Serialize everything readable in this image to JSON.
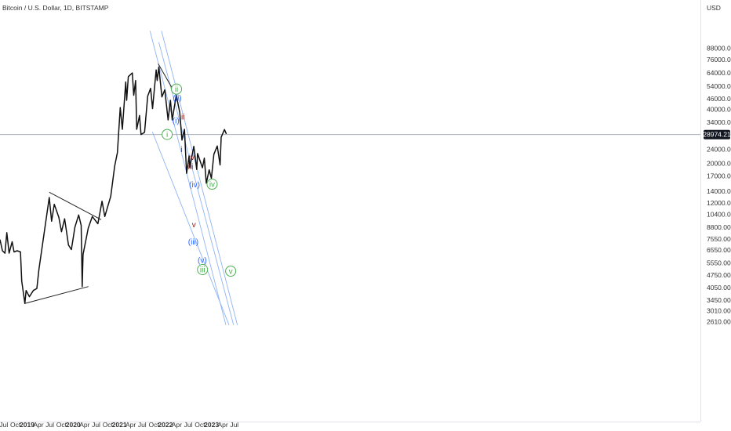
{
  "header": {
    "title": "Bitcoin / U.S. Dollar, 1D, BITSTAMP"
  },
  "chart_data": {
    "type": "line",
    "title": "Bitcoin / U.S. Dollar, 1D, BITSTAMP",
    "currency": "USD",
    "y_scale": "log",
    "ylim": [
      2400,
      110000
    ],
    "current_price": "28974.21",
    "x_ticks": [
      "Jul",
      "Oct",
      "2019",
      "Apr",
      "Jul",
      "Oct",
      "2020",
      "Apr",
      "Jul",
      "Oct",
      "2021",
      "Apr",
      "Jul",
      "Oct",
      "2022",
      "Apr",
      "Jul",
      "Oct",
      "2023",
      "Apr",
      "Jul"
    ],
    "y_ticks": [
      "88000.00",
      "76000.00",
      "64000.00",
      "54000.00",
      "46000.00",
      "40000.00",
      "34000.00",
      "24000.00",
      "20000.00",
      "17000.00",
      "14000.00",
      "12000.00",
      "10400.00",
      "8800.00",
      "7550.00",
      "6550.00",
      "5550.00",
      "4750.00",
      "4050.00",
      "3450.00",
      "3010.00",
      "2610.00"
    ],
    "series": [
      {
        "name": "",
        "values": [
          [
            "2018-06-01",
            7500
          ],
          [
            "2018-06-20",
            6500
          ],
          [
            "2018-07-10",
            6300
          ],
          [
            "2018-07-25",
            8200
          ],
          [
            "2018-08-12",
            6300
          ],
          [
            "2018-09-05",
            7300
          ],
          [
            "2018-09-20",
            6400
          ],
          [
            "2018-10-15",
            6500
          ],
          [
            "2018-11-10",
            6400
          ],
          [
            "2018-11-20",
            4400
          ],
          [
            "2018-12-15",
            3300
          ],
          [
            "2018-12-25",
            3900
          ],
          [
            "2019-01-20",
            3600
          ],
          [
            "2019-02-20",
            3900
          ],
          [
            "2019-03-20",
            4000
          ],
          [
            "2019-04-05",
            5100
          ],
          [
            "2019-05-15",
            8000
          ],
          [
            "2019-06-26",
            12900
          ],
          [
            "2019-07-15",
            9500
          ],
          [
            "2019-08-05",
            11800
          ],
          [
            "2019-09-10",
            10000
          ],
          [
            "2019-10-01",
            8300
          ],
          [
            "2019-10-26",
            9800
          ],
          [
            "2019-11-25",
            7000
          ],
          [
            "2019-12-18",
            6600
          ],
          [
            "2020-01-15",
            8800
          ],
          [
            "2020-02-14",
            10300
          ],
          [
            "2020-03-05",
            9000
          ],
          [
            "2020-03-13",
            4100
          ],
          [
            "2020-03-20",
            6200
          ],
          [
            "2020-04-30",
            8700
          ],
          [
            "2020-06-01",
            10100
          ],
          [
            "2020-07-15",
            9200
          ],
          [
            "2020-08-17",
            12300
          ],
          [
            "2020-09-08",
            10100
          ],
          [
            "2020-10-25",
            13100
          ],
          [
            "2020-11-25",
            19300
          ],
          [
            "2020-12-17",
            23000
          ],
          [
            "2021-01-08",
            41000
          ],
          [
            "2021-01-25",
            31000
          ],
          [
            "2021-02-21",
            57000
          ],
          [
            "2021-02-28",
            45000
          ],
          [
            "2021-03-13",
            61000
          ],
          [
            "2021-04-14",
            64000
          ],
          [
            "2021-04-25",
            48000
          ],
          [
            "2021-05-10",
            58000
          ],
          [
            "2021-05-19",
            31000
          ],
          [
            "2021-06-10",
            37000
          ],
          [
            "2021-06-22",
            29000
          ],
          [
            "2021-07-20",
            29800
          ],
          [
            "2021-08-14",
            47500
          ],
          [
            "2021-09-06",
            52500
          ],
          [
            "2021-09-21",
            40500
          ],
          [
            "2021-10-20",
            66500
          ],
          [
            "2021-10-28",
            58000
          ],
          [
            "2021-11-10",
            69000
          ],
          [
            "2021-11-26",
            53500
          ],
          [
            "2021-12-04",
            47000
          ],
          [
            "2021-12-27",
            51500
          ],
          [
            "2022-01-22",
            35000
          ],
          [
            "2022-02-10",
            45000
          ],
          [
            "2022-02-24",
            35000
          ],
          [
            "2022-03-28",
            48000
          ],
          [
            "2022-04-25",
            38500
          ],
          [
            "2022-05-12",
            27000
          ],
          [
            "2022-06-01",
            31000
          ],
          [
            "2022-06-18",
            17600
          ],
          [
            "2022-07-08",
            22000
          ],
          [
            "2022-07-13",
            19000
          ],
          [
            "2022-08-14",
            24900
          ],
          [
            "2022-09-06",
            18500
          ],
          [
            "2022-09-13",
            22700
          ],
          [
            "2022-10-21",
            18900
          ],
          [
            "2022-11-05",
            21400
          ],
          [
            "2022-11-21",
            15500
          ],
          [
            "2022-12-14",
            18400
          ],
          [
            "2022-12-31",
            16500
          ],
          [
            "2023-01-20",
            22500
          ],
          [
            "2023-02-16",
            25000
          ],
          [
            "2023-03-10",
            19600
          ],
          [
            "2023-03-19",
            28000
          ],
          [
            "2023-04-14",
            30900
          ],
          [
            "2023-04-29",
            29200
          ]
        ]
      }
    ],
    "trendlines": [
      [
        [
          "2019-06-26",
          13800
        ],
        [
          "2020-08-10",
          9700
        ]
      ],
      [
        [
          "2018-12-15",
          3300
        ],
        [
          "2020-05-01",
          4100
        ]
      ],
      [
        [
          "2021-11-05",
          72000
        ],
        [
          "2022-03-28",
          48000
        ]
      ]
    ],
    "channel_lines": [
      [
        [
          "2021-09-20",
          30000
        ],
        [
          "2023-05-20",
          2500
        ]
      ],
      [
        [
          "2021-11-10",
          95000
        ],
        [
          "2023-06-25",
          2500
        ]
      ],
      [
        [
          "2021-09-01",
          110000
        ],
        [
          "2023-04-25",
          2500
        ]
      ],
      [
        [
          "2021-12-01",
          110000
        ],
        [
          "2023-07-25",
          2500
        ]
      ]
    ],
    "wave_labels": [
      {
        "text": "i",
        "date": "2022-01-15",
        "price": 29000,
        "style": "circle",
        "color": "#4caf50"
      },
      {
        "text": "ii",
        "date": "2022-03-30",
        "price": 52000,
        "style": "circle",
        "color": "#4caf50"
      },
      {
        "text": "(ii)",
        "date": "2022-04-05",
        "price": 46500,
        "style": "plain",
        "color": "#2962ff"
      },
      {
        "text": "(i)",
        "date": "2022-03-25",
        "price": 34600,
        "style": "plain",
        "color": "#2962ff"
      },
      {
        "text": "ii",
        "date": "2022-05-20",
        "price": 36500,
        "style": "plain",
        "color": "#8b1a1a"
      },
      {
        "text": "i",
        "date": "2022-05-10",
        "price": 24000,
        "style": "plain",
        "color": "#8b1a1a"
      },
      {
        "text": "iii",
        "date": "2022-07-20",
        "price": 19200,
        "style": "plain",
        "color": "#8b1a1a"
      },
      {
        "text": "iv",
        "date": "2022-07-28",
        "price": 21700,
        "style": "plain",
        "color": "#8b1a1a"
      },
      {
        "text": "(iv)",
        "date": "2022-08-20",
        "price": 15200,
        "style": "plain",
        "color": "#2962ff"
      },
      {
        "text": "v",
        "date": "2022-08-15",
        "price": 9100,
        "style": "plain",
        "color": "#8b1a1a"
      },
      {
        "text": "(iii)",
        "date": "2022-08-10",
        "price": 7300,
        "style": "plain",
        "color": "#2962ff"
      },
      {
        "text": "iv",
        "date": "2023-01-06",
        "price": 15300,
        "style": "circle",
        "color": "#4caf50"
      },
      {
        "text": "(v)",
        "date": "2022-10-20",
        "price": 5750,
        "style": "plain",
        "color": "#2962ff"
      },
      {
        "text": "iii",
        "date": "2022-10-22",
        "price": 5100,
        "style": "circle",
        "color": "#4caf50"
      },
      {
        "text": "v",
        "date": "2023-06-02",
        "price": 5000,
        "style": "circle",
        "color": "#4caf50"
      }
    ],
    "colors": {
      "price": "#111111",
      "axis_text": "#333333",
      "channel": "#8fb4f5",
      "trendline": "#222222",
      "crosshair": "#9a9ea6",
      "price_badge_bg": "#131722",
      "price_badge_text": "#ffffff"
    }
  }
}
